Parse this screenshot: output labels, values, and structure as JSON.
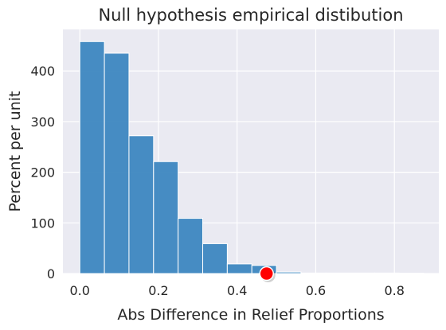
{
  "chart_data": {
    "type": "bar",
    "title": "Null hypothesis empirical distibution",
    "xlabel": "Abs Difference in Relief Proportions",
    "ylabel": "Percent per unit",
    "xlim": [
      -0.043,
      0.913
    ],
    "ylim": [
      0,
      482
    ],
    "xticks": [
      0.0,
      0.2,
      0.4,
      0.6,
      0.8
    ],
    "xtick_labels": [
      "0.0",
      "0.2",
      "0.4",
      "0.6",
      "0.8"
    ],
    "yticks": [
      0,
      100,
      200,
      300,
      400
    ],
    "ytick_labels": [
      "0",
      "100",
      "200",
      "300",
      "400"
    ],
    "grid": true,
    "bin_width": 0.0625,
    "bins": [
      {
        "x0": 0.0,
        "x1": 0.0625,
        "value": 458
      },
      {
        "x0": 0.0625,
        "x1": 0.125,
        "value": 435
      },
      {
        "x0": 0.125,
        "x1": 0.1875,
        "value": 272
      },
      {
        "x0": 0.1875,
        "x1": 0.25,
        "value": 221
      },
      {
        "x0": 0.25,
        "x1": 0.3125,
        "value": 109
      },
      {
        "x0": 0.3125,
        "x1": 0.375,
        "value": 59
      },
      {
        "x0": 0.375,
        "x1": 0.4375,
        "value": 19
      },
      {
        "x0": 0.4375,
        "x1": 0.5,
        "value": 16
      },
      {
        "x0": 0.5,
        "x1": 0.5625,
        "value": 3
      },
      {
        "x0": 0.5625,
        "x1": 0.625,
        "value": 1
      },
      {
        "x0": 0.625,
        "x1": 0.6875,
        "value": 1
      },
      {
        "x0": 0.6875,
        "x1": 0.75,
        "value": 1
      },
      {
        "x0": 0.75,
        "x1": 0.8125,
        "value": 1
      },
      {
        "x0": 0.8125,
        "x1": 0.875,
        "value": 0.5
      }
    ],
    "observed_point": {
      "x": 0.475,
      "y": 0,
      "color": "#ff0000"
    },
    "colors": {
      "bar": "#3d87c0",
      "bar_edge": "#ffffff",
      "plot_background": "#eaeaf2",
      "grid": "#ffffff",
      "point": "#ff0000"
    }
  }
}
